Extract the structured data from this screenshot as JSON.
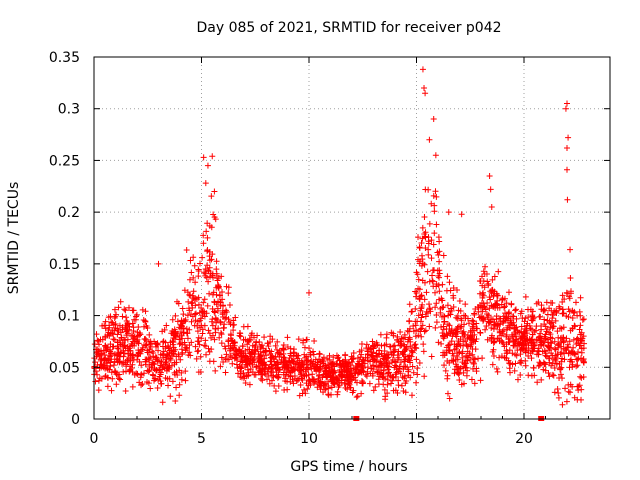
{
  "chart_data": {
    "type": "scatter",
    "title": "Day 085 of 2021, SRMTID for receiver p042",
    "xlabel": "GPS time / hours",
    "ylabel": "SRMTID / TECUs",
    "xlim": [
      0,
      24
    ],
    "ylim": [
      0,
      0.35
    ],
    "x_ticks": [
      0,
      5,
      10,
      15,
      20
    ],
    "x_tick_labels": [
      "0",
      "5",
      "10",
      "15",
      "20"
    ],
    "y_ticks": [
      0,
      0.05,
      0.1,
      0.15,
      0.2,
      0.25,
      0.3,
      0.35
    ],
    "y_tick_labels": [
      "0",
      "0.05",
      "0.1",
      "0.15",
      "0.2",
      "0.25",
      "0.3",
      "0.35"
    ],
    "grid": true,
    "marker": "plus",
    "series_color": "#ff0000",
    "envelope_hours": [
      0,
      1,
      2,
      3,
      4,
      4.8,
      5.5,
      6,
      7,
      8,
      9,
      10,
      11,
      12,
      13,
      14,
      14.8,
      15.3,
      15.8,
      16.3,
      17,
      17.5,
      18.2,
      19,
      20,
      20.8,
      21.5,
      22,
      22.8
    ],
    "envelope_mean": [
      0.06,
      0.07,
      0.075,
      0.05,
      0.075,
      0.1,
      0.13,
      0.085,
      0.06,
      0.055,
      0.05,
      0.05,
      0.045,
      0.045,
      0.055,
      0.055,
      0.07,
      0.12,
      0.16,
      0.085,
      0.075,
      0.07,
      0.11,
      0.09,
      0.075,
      0.075,
      0.07,
      0.07,
      0.07
    ],
    "envelope_spread": [
      0.025,
      0.03,
      0.03,
      0.02,
      0.035,
      0.055,
      0.06,
      0.035,
      0.02,
      0.018,
      0.018,
      0.017,
      0.016,
      0.016,
      0.02,
      0.025,
      0.035,
      0.08,
      0.07,
      0.04,
      0.035,
      0.03,
      0.05,
      0.035,
      0.025,
      0.03,
      0.04,
      0.06,
      0.03
    ],
    "spikes": [
      {
        "x": 5.1,
        "y": 0.253
      },
      {
        "x": 5.5,
        "y": 0.254
      },
      {
        "x": 5.3,
        "y": 0.245
      },
      {
        "x": 5.2,
        "y": 0.228
      },
      {
        "x": 5.6,
        "y": 0.22
      },
      {
        "x": 15.3,
        "y": 0.338
      },
      {
        "x": 15.35,
        "y": 0.32
      },
      {
        "x": 15.4,
        "y": 0.315
      },
      {
        "x": 15.8,
        "y": 0.29
      },
      {
        "x": 15.6,
        "y": 0.27
      },
      {
        "x": 15.9,
        "y": 0.255
      },
      {
        "x": 18.4,
        "y": 0.235
      },
      {
        "x": 18.45,
        "y": 0.222
      },
      {
        "x": 18.5,
        "y": 0.205
      },
      {
        "x": 22.0,
        "y": 0.305
      },
      {
        "x": 21.95,
        "y": 0.3
      },
      {
        "x": 22.05,
        "y": 0.272
      },
      {
        "x": 22.0,
        "y": 0.262
      },
      {
        "x": 22.0,
        "y": 0.241
      },
      {
        "x": 22.02,
        "y": 0.212
      },
      {
        "x": 16.5,
        "y": 0.2
      },
      {
        "x": 17.1,
        "y": 0.198
      },
      {
        "x": 10.0,
        "y": 0.122
      },
      {
        "x": 3.0,
        "y": 0.15
      }
    ],
    "zero_markers": [
      {
        "x": 12.2,
        "y": 0
      },
      {
        "x": 20.8,
        "y": 0
      }
    ]
  }
}
